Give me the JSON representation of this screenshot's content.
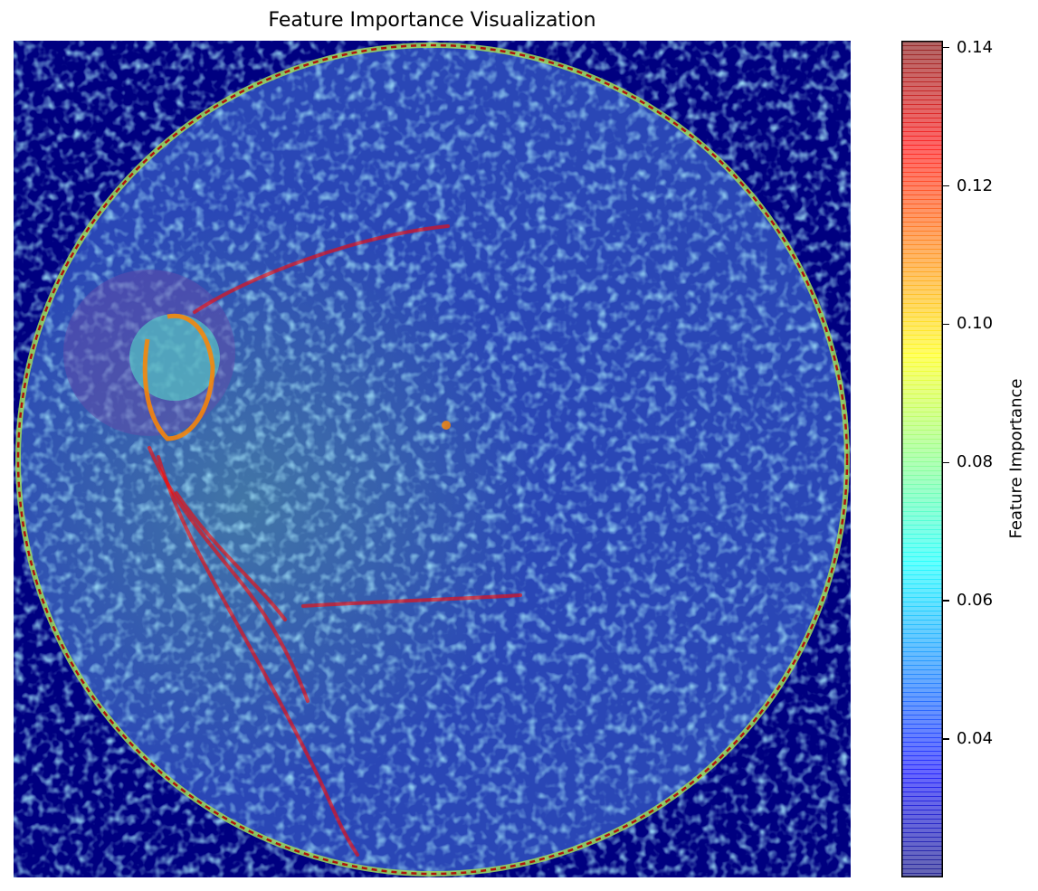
{
  "chart_data": {
    "type": "heatmap",
    "title": "Feature Importance Visualization",
    "xlabel": "",
    "ylabel": "",
    "axis_visible": false,
    "grid": false,
    "colormap": "jet",
    "overlay_alpha": 0.6,
    "colorbar": {
      "label": "Feature Importance",
      "range": [
        0.02,
        0.141
      ],
      "ticks": [
        0.04,
        0.06,
        0.08,
        0.1,
        0.12,
        0.14
      ],
      "tick_labels": [
        "0.04",
        "0.06",
        "0.08",
        "0.10",
        "0.12",
        "0.14"
      ],
      "location": "right"
    },
    "features": {
      "background_outside_disc": 0.02,
      "disc_interior_mean": 0.05,
      "disc_rim_peak": 0.135,
      "optic_disc_region_peak": 0.11,
      "vessel_peak": 0.125
    }
  },
  "colors": {
    "jet_low": "#00007f",
    "jet_mid": "#7fff7f",
    "jet_high": "#7f0000",
    "background": "#ffffff"
  }
}
